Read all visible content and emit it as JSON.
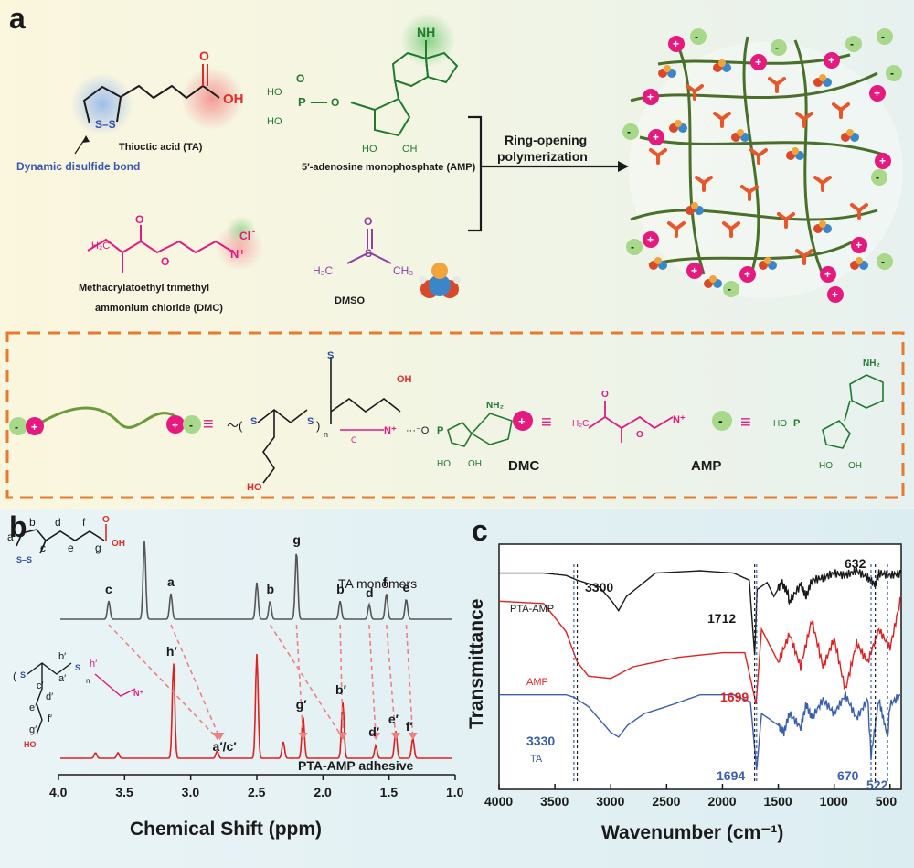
{
  "panel_a": {
    "letter": "a",
    "ta_label": "Thioctic acid (TA)",
    "disulfide_label": "Dynamic disulfide bond",
    "amp_label": "5′-adenosine monophosphate (AMP)",
    "dmc_label_line1": "Methacrylatoethyl trimethyl",
    "dmc_label_line2": "ammonium chloride (DMC)",
    "dmso_label": "DMSO",
    "reaction_line1": "Ring-opening",
    "reaction_line2": "polymerization",
    "chloride": "Cl",
    "oh": "OH",
    "nh2": "NH",
    "legend_dmc": "DMC",
    "legend_amp": "AMP",
    "colors": {
      "dmc": "#e6197f",
      "amp": "#1f7a2e",
      "ta_acid": "#e02b2b",
      "ta_ring": "#2f4fa6",
      "dmso": "#8e3fa6",
      "polymer": "#4a6f2a",
      "crosslink": "#e8562a",
      "box": "#e87a2e"
    }
  },
  "panel_b": {
    "letter": "b",
    "trace_top_label": "TA monomers",
    "trace_bottom_label": "PTA-AMP adhesive",
    "xlabel": "Chemical Shift (ppm)",
    "ticks": [
      "4.0",
      "3.5",
      "3.0",
      "2.5",
      "2.0",
      "1.5",
      "1.0"
    ],
    "peaks_top": [
      "c",
      "a",
      "g",
      "b",
      "b",
      "d",
      "f",
      "e"
    ],
    "peaks_bottom": [
      "h′",
      "a′/c′",
      "g′",
      "b′",
      "d′",
      "e′",
      "f′"
    ],
    "colors": {
      "top": "#555555",
      "bottom": "#e02020",
      "arrows": "#f08080"
    }
  },
  "panel_c": {
    "letter": "c",
    "ylabel": "Transmittance",
    "xlabel": "Wavenumber (cm⁻¹)",
    "ticks": [
      "4000",
      "3500",
      "3000",
      "2500",
      "2000",
      "1500",
      "1000",
      "500"
    ],
    "series": [
      {
        "name": "PTA-AMP",
        "color": "#1a1a1a"
      },
      {
        "name": "AMP",
        "color": "#e02020"
      },
      {
        "name": "TA",
        "color": "#3a5fae"
      }
    ],
    "annotations": {
      "a3300": "3300",
      "a632": "632",
      "a1712": "1712",
      "a1699": "1699",
      "a3330": "3330",
      "a1694": "1694",
      "a670": "670",
      "a522": "522"
    }
  },
  "chart_data": [
    {
      "type": "line",
      "title": "",
      "xlabel": "Chemical Shift (ppm)",
      "ylabel": "",
      "xlim": [
        4.0,
        1.0
      ],
      "series": [
        {
          "name": "TA monomers",
          "peaks_ppm": [
            3.62,
            3.35,
            3.15,
            2.5,
            2.4,
            2.2,
            1.87,
            1.65,
            1.52,
            1.37
          ]
        },
        {
          "name": "PTA-AMP adhesive",
          "peaks_ppm": [
            3.72,
            3.55,
            3.13,
            2.8,
            2.5,
            2.3,
            2.15,
            1.85,
            1.6,
            1.45,
            1.32
          ]
        }
      ]
    },
    {
      "type": "line",
      "title": "",
      "xlabel": "Wavenumber (cm⁻¹)",
      "ylabel": "Transmittance",
      "xlim": [
        4000,
        400
      ],
      "series": [
        {
          "name": "PTA-AMP",
          "x": [
            4000,
            3600,
            3400,
            3300,
            3100,
            2990,
            2930,
            2860,
            2600,
            2200,
            1900,
            1760,
            1712,
            1690,
            1600,
            1540,
            1470,
            1420,
            1400,
            1300,
            1250,
            1200,
            1100,
            1000,
            900,
            800,
            700,
            632,
            600,
            500,
            400
          ],
          "y": [
            0.9,
            0.9,
            0.89,
            0.87,
            0.84,
            0.78,
            0.74,
            0.8,
            0.9,
            0.91,
            0.9,
            0.87,
            0.55,
            0.83,
            0.86,
            0.8,
            0.86,
            0.82,
            0.78,
            0.85,
            0.8,
            0.87,
            0.88,
            0.9,
            0.89,
            0.91,
            0.88,
            0.85,
            0.9,
            0.89,
            0.9
          ]
        },
        {
          "name": "AMP",
          "x": [
            4000,
            3600,
            3400,
            3300,
            3200,
            3000,
            2800,
            2400,
            2000,
            1800,
            1699,
            1650,
            1500,
            1400,
            1300,
            1200,
            1100,
            1000,
            900,
            800,
            700,
            600,
            500,
            400
          ],
          "y": [
            0.78,
            0.77,
            0.65,
            0.52,
            0.46,
            0.45,
            0.5,
            0.54,
            0.56,
            0.56,
            0.34,
            0.66,
            0.52,
            0.64,
            0.5,
            0.7,
            0.5,
            0.62,
            0.4,
            0.6,
            0.52,
            0.66,
            0.58,
            0.8
          ]
        },
        {
          "name": "TA",
          "x": [
            4000,
            3600,
            3400,
            3330,
            3200,
            3000,
            2930,
            2850,
            2700,
            2500,
            2200,
            1900,
            1750,
            1694,
            1650,
            1500,
            1450,
            1400,
            1300,
            1250,
            1200,
            1100,
            1000,
            900,
            800,
            700,
            670,
            600,
            522,
            500,
            400
          ],
          "y": [
            0.38,
            0.38,
            0.38,
            0.37,
            0.33,
            0.22,
            0.2,
            0.25,
            0.3,
            0.33,
            0.38,
            0.38,
            0.35,
            0.06,
            0.3,
            0.25,
            0.22,
            0.3,
            0.24,
            0.34,
            0.28,
            0.36,
            0.3,
            0.38,
            0.28,
            0.36,
            0.12,
            0.36,
            0.2,
            0.34,
            0.38
          ]
        }
      ]
    }
  ]
}
